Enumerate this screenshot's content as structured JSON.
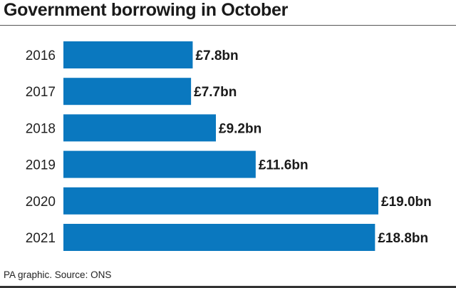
{
  "title": "Government borrowing in October",
  "footer": "PA graphic. Source: ONS",
  "colors": {
    "bar": "#0a78bf"
  },
  "chart_data": {
    "type": "bar",
    "orientation": "horizontal",
    "categories": [
      "2016",
      "2017",
      "2018",
      "2019",
      "2020",
      "2021"
    ],
    "values": [
      7.8,
      7.7,
      9.2,
      11.6,
      19.0,
      18.8
    ],
    "value_labels": [
      "£7.8bn",
      "£7.7bn",
      "£9.2bn",
      "£11.6bn",
      "£19.0bn",
      "£18.8bn"
    ],
    "unit": "£bn",
    "title": "Government borrowing in October",
    "xlabel": "",
    "ylabel": "",
    "xlim": [
      0,
      19.0
    ],
    "grid": false,
    "legend": "none"
  }
}
